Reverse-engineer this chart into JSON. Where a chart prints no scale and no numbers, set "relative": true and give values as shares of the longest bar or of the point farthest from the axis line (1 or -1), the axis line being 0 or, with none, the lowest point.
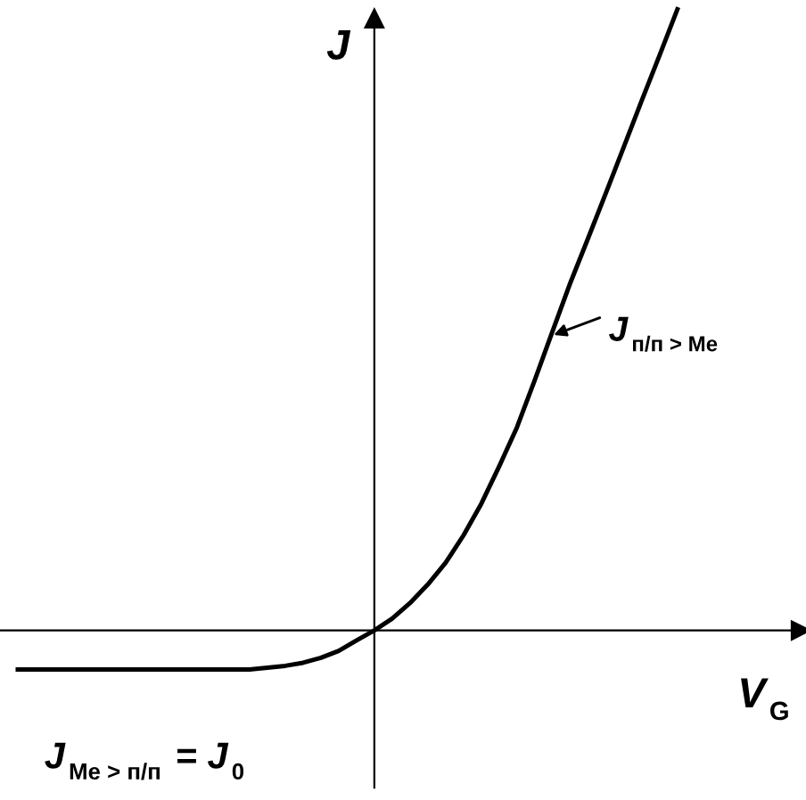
{
  "chart_data": {
    "type": "line",
    "relative": true,
    "xlabel": "V$_{G}$",
    "ylabel": "J",
    "categories": [
      null,
      null,
      null,
      null,
      null,
      null,
      null,
      null,
      null,
      null,
      null,
      null,
      null,
      null,
      null,
      null,
      null,
      null,
      null,
      null,
      null,
      null,
      null,
      null,
      null,
      null,
      null,
      null,
      null,
      null,
      null,
      null,
      null,
      null,
      null,
      null,
      null,
      null
    ],
    "series": [
      {
        "color": "#000000",
        "values": [
          -0.063,
          -0.063,
          -0.063,
          -0.063,
          -0.063,
          -0.063,
          -0.063,
          -0.063,
          -0.063,
          -0.063,
          -0.063,
          -0.063,
          -0.063,
          -0.063,
          -0.06,
          -0.057,
          -0.052,
          -0.044,
          -0.033,
          -0.016,
          0,
          0.019,
          0.044,
          0.074,
          0.109,
          0.153,
          0.204,
          0.264,
          0.327,
          0.403,
          0.482,
          0.56,
          0.632,
          0.705,
          0.779,
          0.853,
          0.926,
          1
        ]
      }
    ],
    "annotations": [
      "J$_{п/п > Me}$",
      "J$_{Me > п/п}$ = J$_{0}$"
    ]
  }
}
